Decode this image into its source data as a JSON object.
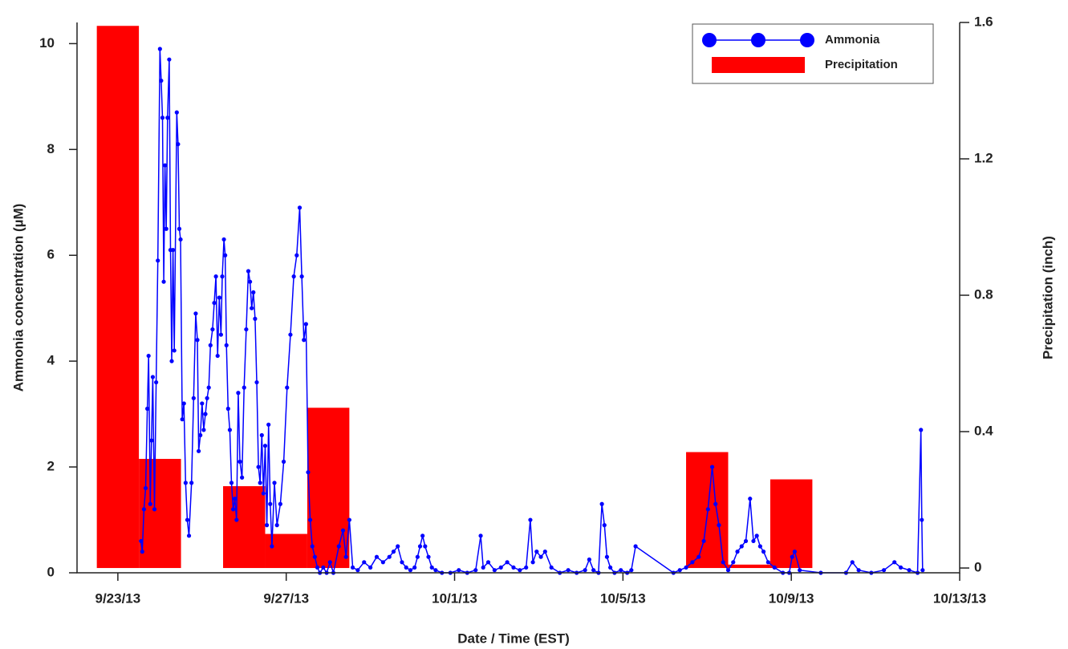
{
  "chart_data": {
    "type": "line",
    "xlabel": "Date / Time (EST)",
    "ylabel": "Ammonia concentration (µM)",
    "y2label": "Precipitation (inch)",
    "xlim": [
      -0.97,
      20
    ],
    "xticks": [
      {
        "value": 0,
        "label": "9/23/13"
      },
      {
        "value": 4,
        "label": "9/27/13"
      },
      {
        "value": 8,
        "label": "10/1/13"
      },
      {
        "value": 12,
        "label": "10/5/13"
      },
      {
        "value": 16,
        "label": "10/9/13"
      },
      {
        "value": 20,
        "label": "10/13/13"
      }
    ],
    "ylim": [
      0,
      10.4
    ],
    "yticks": [
      0,
      2,
      4,
      6,
      8,
      10
    ],
    "y2lim": [
      -0.014,
      1.6
    ],
    "y2ticks": [
      0,
      0.4,
      0.8,
      1.2,
      1.6
    ],
    "legend": "upper right",
    "series": [
      {
        "name": "Ammonia",
        "type": "line",
        "color": "#0000ff",
        "x": [
          0.55,
          0.58,
          0.62,
          0.66,
          0.7,
          0.73,
          0.77,
          0.8,
          0.83,
          0.87,
          0.91,
          0.95,
          1.0,
          1.03,
          1.06,
          1.09,
          1.12,
          1.15,
          1.18,
          1.22,
          1.25,
          1.28,
          1.31,
          1.34,
          1.4,
          1.43,
          1.46,
          1.49,
          1.53,
          1.57,
          1.61,
          1.65,
          1.69,
          1.75,
          1.8,
          1.85,
          1.89,
          1.92,
          1.96,
          2.0,
          2.04,
          2.08,
          2.12,
          2.16,
          2.2,
          2.25,
          2.29,
          2.33,
          2.37,
          2.41,
          2.45,
          2.48,
          2.52,
          2.55,
          2.58,
          2.62,
          2.66,
          2.7,
          2.74,
          2.78,
          2.82,
          2.86,
          2.9,
          2.95,
          3.0,
          3.05,
          3.1,
          3.14,
          3.18,
          3.22,
          3.26,
          3.3,
          3.34,
          3.38,
          3.42,
          3.46,
          3.5,
          3.54,
          3.58,
          3.62,
          3.66,
          3.72,
          3.78,
          3.86,
          3.94,
          4.02,
          4.1,
          4.18,
          4.25,
          4.32,
          4.37,
          4.42,
          4.47,
          4.52,
          4.57,
          4.62,
          4.68,
          4.74,
          4.8,
          4.88,
          4.96,
          5.04,
          5.12,
          5.25,
          5.35,
          5.42,
          5.5,
          5.58,
          5.7,
          5.85,
          6.0,
          6.15,
          6.3,
          6.45,
          6.55,
          6.65,
          6.75,
          6.85,
          6.95,
          7.05,
          7.12,
          7.18,
          7.24,
          7.3,
          7.38,
          7.46,
          7.55,
          7.7,
          7.9,
          8.1,
          8.3,
          8.5,
          8.62,
          8.68,
          8.8,
          8.95,
          9.1,
          9.25,
          9.4,
          9.55,
          9.7,
          9.8,
          9.86,
          9.95,
          10.05,
          10.15,
          10.3,
          10.5,
          10.7,
          10.9,
          11.1,
          11.2,
          11.3,
          11.42,
          11.5,
          11.56,
          11.62,
          11.7,
          11.8,
          11.95,
          12.1,
          12.2,
          12.3,
          13.2,
          13.35,
          13.5,
          13.65,
          13.8,
          13.92,
          14.02,
          14.12,
          14.2,
          14.28,
          14.38,
          14.5,
          14.62,
          14.72,
          14.82,
          14.92,
          15.02,
          15.1,
          15.18,
          15.26,
          15.34,
          15.45,
          15.6,
          15.8,
          15.95,
          16.02,
          16.08,
          16.2,
          16.7,
          17.3,
          17.45,
          17.6,
          17.9,
          18.2,
          18.45,
          18.6,
          18.8,
          19.0,
          19.08,
          19.1,
          19.12
        ],
        "values": [
          0.6,
          0.4,
          1.2,
          1.6,
          3.1,
          4.1,
          1.3,
          2.5,
          3.7,
          1.2,
          3.6,
          5.9,
          9.9,
          9.3,
          8.6,
          5.5,
          7.7,
          6.5,
          8.6,
          9.7,
          6.1,
          4.0,
          6.1,
          4.2,
          8.7,
          8.1,
          6.5,
          6.3,
          2.9,
          3.2,
          1.7,
          1.0,
          0.7,
          1.7,
          3.3,
          4.9,
          4.4,
          2.3,
          2.6,
          3.2,
          2.7,
          3.0,
          3.3,
          3.5,
          4.3,
          4.6,
          5.1,
          5.6,
          4.1,
          5.2,
          4.5,
          5.6,
          6.3,
          6.0,
          4.3,
          3.1,
          2.7,
          1.7,
          1.2,
          1.4,
          1.0,
          3.4,
          2.1,
          1.8,
          3.5,
          4.6,
          5.7,
          5.5,
          5.0,
          5.3,
          4.8,
          3.6,
          2.0,
          1.7,
          2.6,
          1.5,
          2.4,
          0.9,
          2.8,
          1.3,
          0.5,
          1.7,
          0.9,
          1.3,
          2.1,
          3.5,
          4.5,
          5.6,
          6.0,
          6.9,
          5.6,
          4.4,
          4.7,
          1.9,
          1.0,
          0.5,
          0.3,
          0.1,
          0.0,
          0.1,
          0.0,
          0.2,
          0.0,
          0.5,
          0.8,
          0.3,
          1.0,
          0.1,
          0.05,
          0.2,
          0.1,
          0.3,
          0.2,
          0.3,
          0.4,
          0.5,
          0.2,
          0.1,
          0.05,
          0.1,
          0.3,
          0.5,
          0.7,
          0.5,
          0.3,
          0.1,
          0.05,
          0,
          0,
          0.05,
          0,
          0.05,
          0.7,
          0.1,
          0.2,
          0.05,
          0.1,
          0.2,
          0.1,
          0.05,
          0.1,
          1.0,
          0.2,
          0.4,
          0.3,
          0.4,
          0.1,
          0,
          0.05,
          0,
          0.05,
          0.25,
          0.05,
          0,
          1.3,
          0.9,
          0.3,
          0.1,
          0,
          0.05,
          0,
          0.05,
          0.5,
          0,
          0.05,
          0.1,
          0.2,
          0.3,
          0.6,
          1.2,
          2.0,
          1.3,
          0.9,
          0.2,
          0.05,
          0.2,
          0.4,
          0.5,
          0.6,
          1.4,
          0.6,
          0.7,
          0.5,
          0.4,
          0.2,
          0.1,
          0,
          0,
          0.3,
          0.4,
          0.05,
          0,
          0,
          0.2,
          0.05,
          0,
          0.05,
          0.2,
          0.1,
          0.05,
          0,
          2.7,
          1.0,
          0.05
        ]
      },
      {
        "name": "Precipitation",
        "type": "bar",
        "axis": "y2",
        "color": "#ff0000",
        "x": [
          0,
          1,
          3,
          4,
          5,
          14,
          15,
          16
        ],
        "values": [
          1.59,
          0.32,
          0.24,
          0.1,
          0.47,
          0.34,
          0.01,
          0.26
        ]
      }
    ]
  }
}
